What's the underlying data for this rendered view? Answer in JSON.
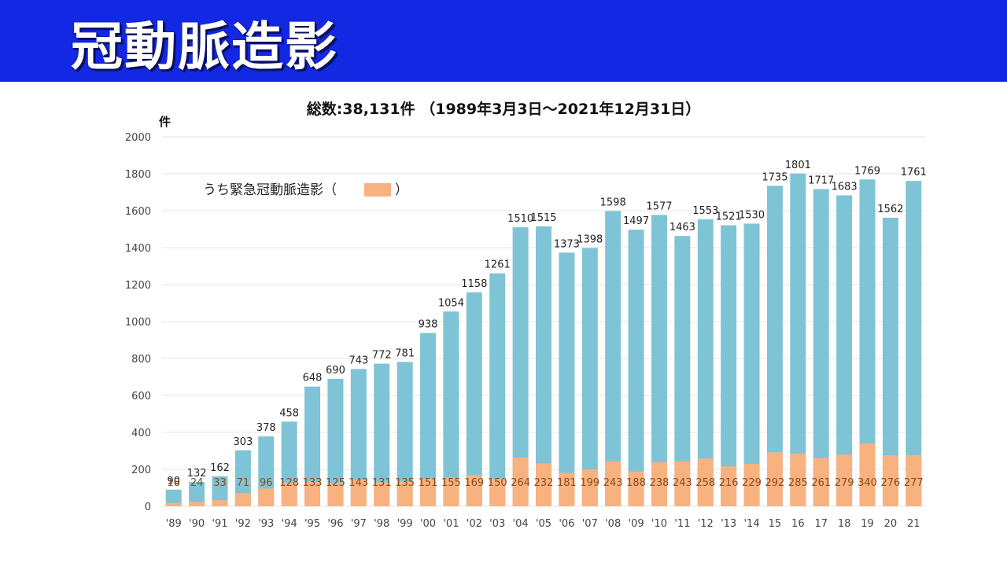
{
  "header": {
    "title": "冠動脈造影"
  },
  "colors": {
    "header_bg": "#1328e3",
    "total": "#7fc3d6",
    "emergency": "#f8b27f",
    "grid": "#e6e6e6"
  },
  "chart_data": {
    "type": "bar",
    "title": "総数:38,131件 （1989年3月3日～2021年12月31日）",
    "ylabel": "件",
    "xlabel": "",
    "ylim": [
      0,
      2000
    ],
    "yticks": [
      0,
      200,
      400,
      600,
      800,
      1000,
      1200,
      1400,
      1600,
      1800,
      2000
    ],
    "legend": {
      "label_prefix": "うち緊急冠動脈造影（",
      "label_suffix": "）",
      "position": "top-left"
    },
    "categories": [
      "'89",
      "'90",
      "'91",
      "'92",
      "'93",
      "'94",
      "'95",
      "'96",
      "'97",
      "'98",
      "'99",
      "'00",
      "'01",
      "'02",
      "'03",
      "'04",
      "'05",
      "'06",
      "'07",
      "'08",
      "'09",
      "'10",
      "'11",
      "'12",
      "'13",
      "'14",
      "15",
      "16",
      "17",
      "18",
      "19",
      "20",
      "21"
    ],
    "series": [
      {
        "name": "総数",
        "values": [
          90,
          132,
          162,
          303,
          378,
          458,
          648,
          690,
          743,
          772,
          781,
          938,
          1054,
          1158,
          1261,
          1510,
          1515,
          1373,
          1398,
          1598,
          1497,
          1577,
          1463,
          1553,
          1521,
          1530,
          1735,
          1801,
          1717,
          1683,
          1769,
          1562,
          1761
        ]
      },
      {
        "name": "うち緊急冠動脈造影",
        "values": [
          18,
          24,
          33,
          71,
          96,
          128,
          133,
          125,
          143,
          131,
          135,
          151,
          155,
          169,
          150,
          264,
          232,
          181,
          199,
          243,
          188,
          238,
          243,
          258,
          216,
          229,
          292,
          285,
          261,
          279,
          340,
          276,
          277
        ]
      }
    ]
  }
}
